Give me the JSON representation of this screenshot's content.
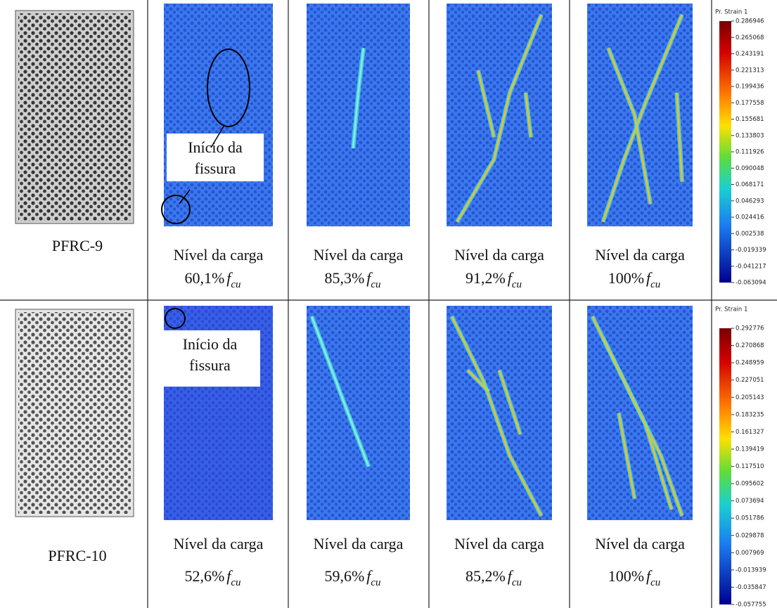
{
  "rows": [
    {
      "specimen": "PFRC-9",
      "annotation": [
        "Início da",
        "fissura"
      ],
      "panels": [
        {
          "caption": "Nível da carga",
          "load": "60,1%",
          "symbol": "f",
          "subscript": "cu"
        },
        {
          "caption": "Nível da carga",
          "load": "85,3%",
          "symbol": "f",
          "subscript": "cu"
        },
        {
          "caption": "Nível da carga",
          "load": "91,2%",
          "symbol": "f",
          "subscript": "cu"
        },
        {
          "caption": "Nível da carga",
          "load": "100%",
          "symbol": "f",
          "subscript": "cu"
        }
      ],
      "colorbar": {
        "title": "Pr. Strain 1",
        "labels": [
          "0.286946",
          "0.265068",
          "0.243191",
          "0.221313",
          "0.199436",
          "0.177558",
          "0.155681",
          "0.133803",
          "0.111926",
          "0.090048",
          "0.068171",
          "0.046293",
          "0.024416",
          "0.002538",
          "-0.019339",
          "-0.041217",
          "-0.063094"
        ]
      }
    },
    {
      "specimen": "PFRC-10",
      "annotation": [
        "Início da",
        "fissura"
      ],
      "panels": [
        {
          "caption": "Nível da carga",
          "load": "52,6%",
          "symbol": "f",
          "subscript": "cu"
        },
        {
          "caption": "Nível da carga",
          "load": "59,6%",
          "symbol": "f",
          "subscript": "cu"
        },
        {
          "caption": "Nível da carga",
          "load": "85,2%",
          "symbol": "f",
          "subscript": "cu"
        },
        {
          "caption": "Nível da carga",
          "load": "100%",
          "symbol": "f",
          "subscript": "cu"
        }
      ],
      "colorbar": {
        "title": "Pr. Strain 1",
        "labels": [
          "0.292776",
          "0.270868",
          "0.248959",
          "0.227051",
          "0.205143",
          "0.183235",
          "0.161327",
          "0.139419",
          "0.117510",
          "0.095602",
          "0.073694",
          "0.051786",
          "0.029878",
          "0.007969",
          "-0.013939",
          "-0.035847",
          "-0.057755"
        ]
      }
    }
  ]
}
